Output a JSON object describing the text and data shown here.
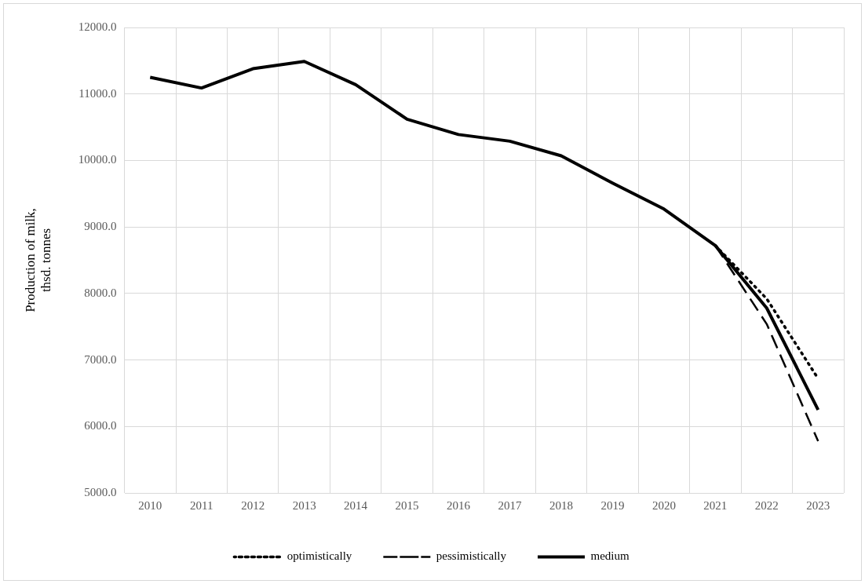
{
  "chart_data": {
    "type": "line",
    "ylabel": "Production of milk,\nthsd. tonnes",
    "categories": [
      "2010",
      "2011",
      "2012",
      "2013",
      "2014",
      "2015",
      "2016",
      "2017",
      "2018",
      "2019",
      "2020",
      "2021",
      "2022",
      "2023"
    ],
    "series": [
      {
        "name": "optimistically",
        "color": "#000000",
        "line_style": "dotted",
        "values": [
          null,
          null,
          null,
          null,
          null,
          null,
          null,
          null,
          null,
          null,
          null,
          8720,
          7920,
          6720
        ]
      },
      {
        "name": "pessimistically",
        "color": "#000000",
        "line_style": "dashed",
        "values": [
          null,
          null,
          null,
          null,
          null,
          null,
          null,
          null,
          null,
          null,
          null,
          8720,
          7540,
          5780
        ]
      },
      {
        "name": "medium",
        "color": "#000000",
        "line_style": "solid",
        "values": [
          11250,
          11090,
          11380,
          11490,
          11140,
          10620,
          10390,
          10290,
          10070,
          9660,
          9270,
          8720,
          7780,
          6250
        ]
      }
    ],
    "ylim": [
      5000,
      12000
    ],
    "yticks": [
      {
        "value": 5000,
        "label": "5000.0"
      },
      {
        "value": 6000,
        "label": "6000.0"
      },
      {
        "value": 7000,
        "label": "7000.0"
      },
      {
        "value": 8000,
        "label": "8000.0"
      },
      {
        "value": 9000,
        "label": "9000.0"
      },
      {
        "value": 10000,
        "label": "10000.0"
      },
      {
        "value": 11000,
        "label": "11000.0"
      },
      {
        "value": 12000,
        "label": "12000.0"
      }
    ],
    "grid": true,
    "legend": "bottom",
    "marker": "none"
  }
}
